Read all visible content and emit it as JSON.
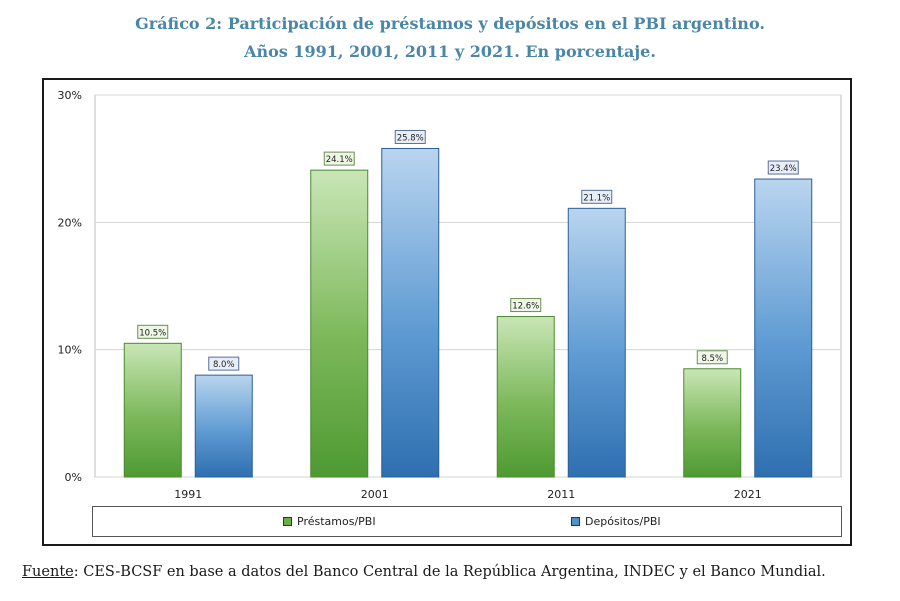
{
  "title_line1": "Gráfico 2: Participación de préstamos y depósitos en el PBI argentino.",
  "title_line2": "Años 1991, 2001, 2011 y 2021. En porcentaje.",
  "source_label": "Fuente",
  "source_text": ": CES-BCSF en base a datos del Banco Central de la República Argentina, INDEC y el Banco Mundial.",
  "colors": {
    "prestamos": "#7cb85a",
    "depositos": "#4f8fcb",
    "title": "#4a86a8"
  },
  "chart_data": {
    "type": "bar",
    "categories": [
      "1991",
      "2001",
      "2011",
      "2021"
    ],
    "series": [
      {
        "name": "Préstamos/PBI",
        "values": [
          10.5,
          24.1,
          12.6,
          8.5
        ],
        "labels": [
          "10.5%",
          "24.1%",
          "12.6%",
          "8.5%"
        ]
      },
      {
        "name": "Depósitos/PBI",
        "values": [
          8.0,
          25.8,
          21.1,
          23.4
        ],
        "labels": [
          "8.0%",
          "25.8%",
          "21.1%",
          "23.4%"
        ]
      }
    ],
    "yticks": [
      "0%",
      "10%",
      "20%",
      "30%"
    ],
    "ytick_values": [
      0,
      10,
      20,
      30
    ],
    "ylim": [
      0,
      30
    ],
    "legend_position": "bottom",
    "grid": true,
    "xlabel": "",
    "ylabel": ""
  }
}
